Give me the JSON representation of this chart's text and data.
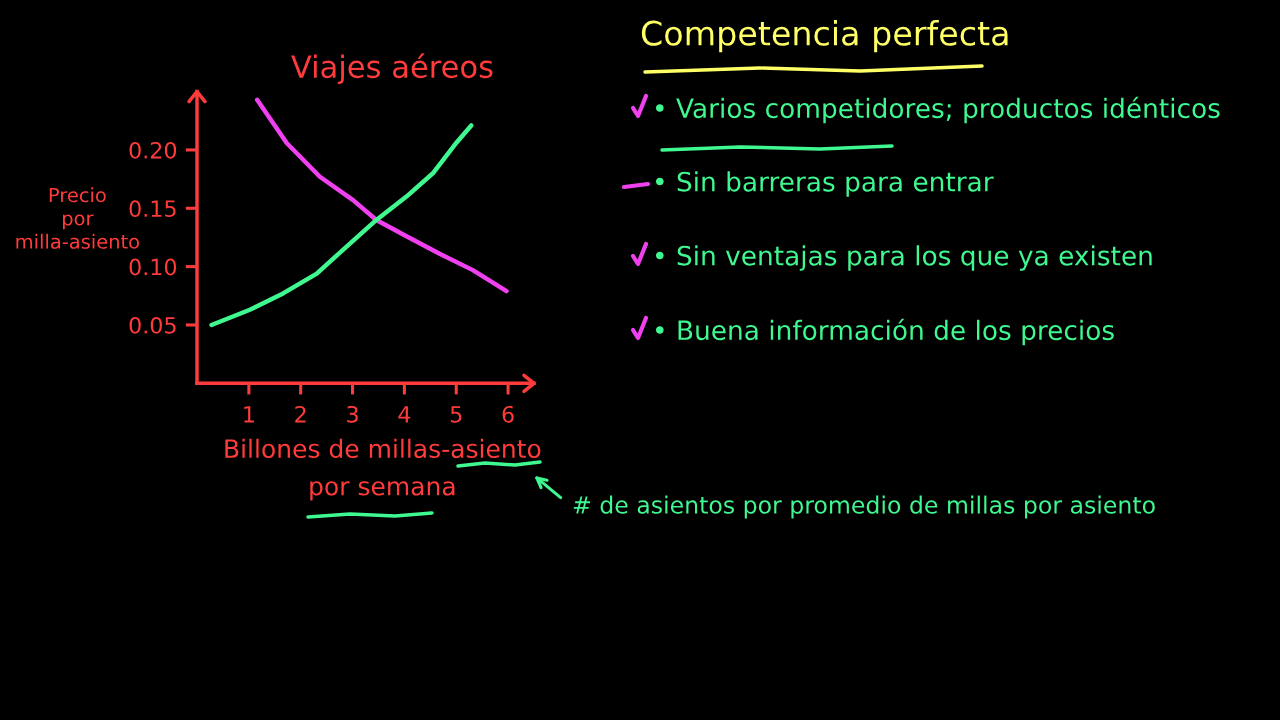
{
  "chart_data": [
    {
      "type": "line",
      "title": "Viajes aéreos",
      "xlabel": "Billones de millas-asiento\npor semana",
      "ylabel": "Precio\npor\nmilla-asiento",
      "xlim": [
        0,
        6.5
      ],
      "ylim": [
        0,
        0.25
      ],
      "xticks": [
        1,
        2,
        3,
        4,
        5,
        6
      ],
      "yticks": [
        0.05,
        {
          "value": 0.1,
          "label": "0.10"
        },
        0.15,
        {
          "value": 0.2,
          "label": "0.20"
        }
      ],
      "series": [
        {
          "color": "#f040f0",
          "x": [
            1.16,
            1.73,
            2.37,
            3.01,
            3.46,
            4.04,
            4.68,
            5.32,
            5.97
          ],
          "values": [
            0.243,
            0.206,
            0.177,
            0.157,
            0.14,
            0.126,
            0.111,
            0.097,
            0.079
          ]
        },
        {
          "color": "#40f890",
          "x": [
            0.28,
            1.02,
            1.66,
            2.31,
            2.88,
            3.46,
            4.04,
            4.55,
            5.0,
            5.29
          ],
          "values": [
            0.05,
            0.063,
            0.077,
            0.094,
            0.117,
            0.14,
            0.16,
            0.18,
            0.206,
            0.221
          ]
        }
      ],
      "annotations": [
        "# de asientos por promedio de millas por asiento"
      ]
    },
    {
      "type": "other",
      "title": "Competencia perfecta",
      "annotations": [
        "• Varios competidores; productos idénticos",
        "• Sin barreras para entrar",
        "• Sin ventajas para los que ya existen",
        "• Buena información de los precios"
      ]
    }
  ]
}
